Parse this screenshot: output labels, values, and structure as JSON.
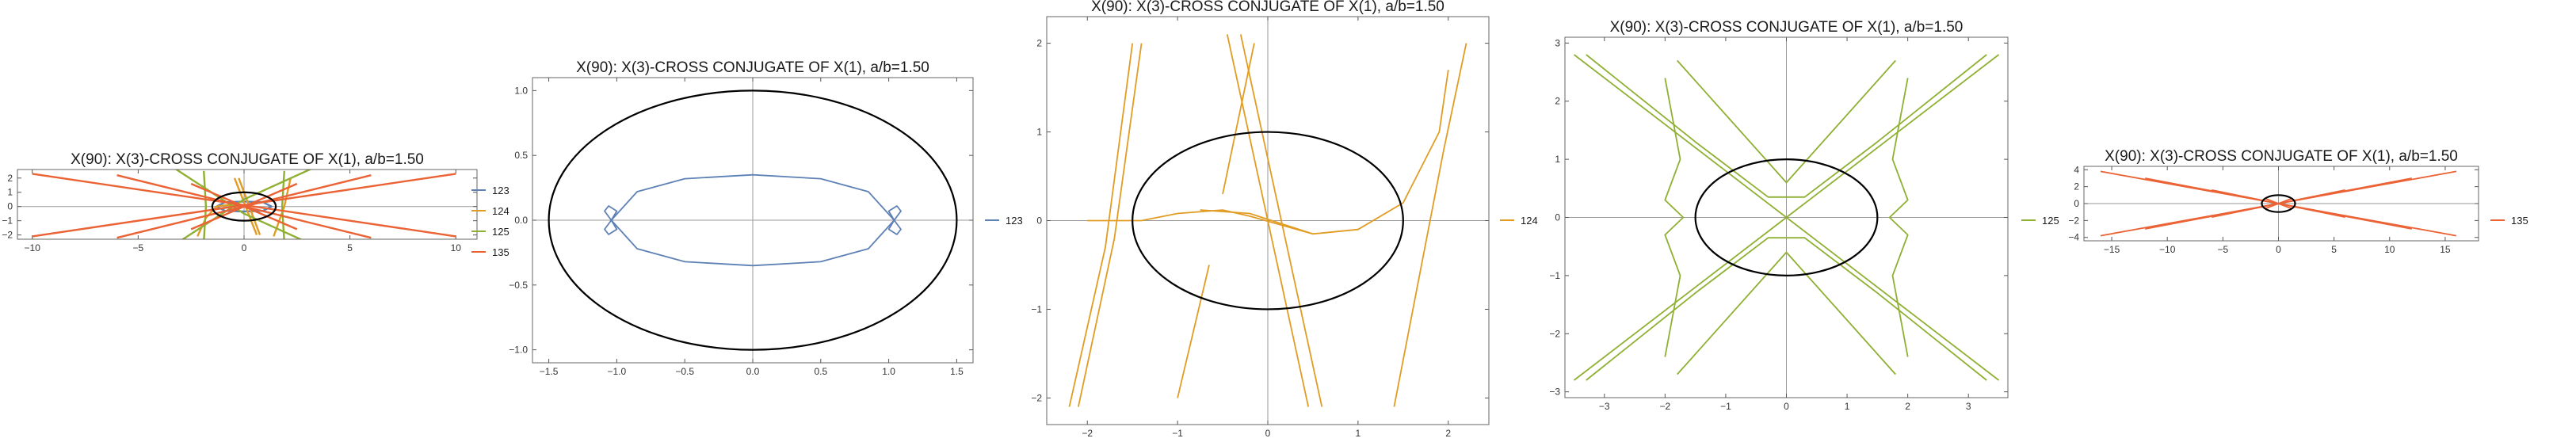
{
  "chart_data": [
    {
      "type": "line",
      "title": "X(90): X(3)-CROSS CONJUGATE OF X(1), a/b=1.50",
      "xlim": [
        -10.7,
        11
      ],
      "ylim": [
        -2.3,
        2.6
      ],
      "xticks": [
        -10,
        -5,
        0,
        5,
        10
      ],
      "yticks": [
        -2,
        -1,
        0,
        1,
        2
      ],
      "grid": false,
      "legend_position": "right",
      "legend": [
        {
          "label": "123",
          "color": "#5e81b5"
        },
        {
          "label": "124",
          "color": "#e19c24"
        },
        {
          "label": "125",
          "color": "#8fb032"
        },
        {
          "label": "135",
          "color": "#eb6235"
        }
      ],
      "ellipse": {
        "a": 1.5,
        "b": 1,
        "color": "#000000"
      },
      "series": [
        {
          "name": "123",
          "color": "#5e81b5",
          "curves": [
            [
              [
                -1.3,
                0
              ],
              [
                -0.9,
                0.3
              ],
              [
                0,
                0.35
              ],
              [
                0.9,
                0.3
              ],
              [
                1.3,
                0
              ],
              [
                0.9,
                -0.3
              ],
              [
                0,
                -0.35
              ],
              [
                -0.9,
                -0.3
              ],
              [
                -1.3,
                0
              ]
            ]
          ]
        },
        {
          "name": "124",
          "color": "#e19c24",
          "curves": [
            [
              [
                -2.2,
                -2.1
              ],
              [
                -1.8,
                -0.8
              ],
              [
                -1.3,
                0
              ],
              [
                -0.8,
                0.1
              ],
              [
                -0.5,
                0.05
              ]
            ],
            [
              [
                -0.45,
                2.0
              ],
              [
                0.6,
                -2.0
              ]
            ],
            [
              [
                -0.25,
                2.0
              ],
              [
                0.75,
                -2.0
              ]
            ],
            [
              [
                1.4,
                -2.1
              ],
              [
                1.9,
                0
              ],
              [
                2.2,
                2.0
              ]
            ]
          ]
        },
        {
          "name": "125",
          "color": "#8fb032",
          "curves": [
            [
              [
                -3.4,
                2.8
              ],
              [
                0,
                -0.5
              ],
              [
                3.4,
                -2.8
              ]
            ],
            [
              [
                -3.4,
                -2.8
              ],
              [
                0,
                0.5
              ],
              [
                3.4,
                2.8
              ]
            ],
            [
              [
                -1.9,
                2.5
              ],
              [
                -1.8,
                0
              ],
              [
                -1.9,
                -2.5
              ]
            ],
            [
              [
                1.9,
                2.5
              ],
              [
                1.8,
                0
              ],
              [
                1.9,
                -2.5
              ]
            ]
          ]
        },
        {
          "name": "135",
          "color": "#eb6235",
          "curves": [
            [
              [
                -10,
                2.3
              ],
              [
                10,
                -2.1
              ]
            ],
            [
              [
                -10,
                -2.1
              ],
              [
                10,
                2.3
              ]
            ],
            [
              [
                -6,
                2.2
              ],
              [
                6,
                -2.2
              ]
            ],
            [
              [
                -6,
                -2.2
              ],
              [
                6,
                2.2
              ]
            ],
            [
              [
                -2.5,
                1.6
              ],
              [
                2.5,
                -1.6
              ]
            ],
            [
              [
                -2.5,
                -1.6
              ],
              [
                2.5,
                1.6
              ]
            ]
          ]
        }
      ]
    },
    {
      "type": "line",
      "title": "X(90): X(3)-CROSS CONJUGATE OF X(1), a/b=1.50",
      "xlim": [
        -1.62,
        1.62
      ],
      "ylim": [
        -1.1,
        1.1
      ],
      "xticks": [
        -1.5,
        -1.0,
        -0.5,
        0.0,
        0.5,
        1.0,
        1.5
      ],
      "xtick_labels": [
        "-1.5",
        "-1.0",
        "-0.5",
        "0.0",
        "0.5",
        "1.0",
        "1.5"
      ],
      "yticks": [
        -1.0,
        -0.5,
        0.0,
        0.5,
        1.0
      ],
      "ytick_labels": [
        "-1.0",
        "-0.5",
        "0.0",
        "0.5",
        "1.0"
      ],
      "grid": false,
      "legend_position": "right",
      "legend": [
        {
          "label": "123",
          "color": "#5e81b5"
        }
      ],
      "ellipse": {
        "a": 1.5,
        "b": 1,
        "color": "#000000"
      },
      "series": [
        {
          "name": "123",
          "color": "#5e81b5",
          "curves": [
            [
              [
                -1.04,
                0
              ],
              [
                -0.85,
                0.22
              ],
              [
                -0.5,
                0.32
              ],
              [
                0,
                0.35
              ],
              [
                0.5,
                0.32
              ],
              [
                0.85,
                0.22
              ],
              [
                1.04,
                0
              ],
              [
                0.85,
                -0.22
              ],
              [
                0.5,
                -0.32
              ],
              [
                0,
                -0.35
              ],
              [
                -0.5,
                -0.32
              ],
              [
                -0.85,
                -0.22
              ],
              [
                -1.04,
                0
              ]
            ],
            [
              [
                -1.04,
                0
              ],
              [
                -1.09,
                0.07
              ],
              [
                -1.06,
                0.11
              ],
              [
                -1.0,
                0.07
              ],
              [
                -1.04,
                0
              ],
              [
                -1.09,
                -0.07
              ],
              [
                -1.06,
                -0.11
              ],
              [
                -1.0,
                -0.07
              ],
              [
                -1.04,
                0
              ]
            ],
            [
              [
                1.04,
                0
              ],
              [
                1.09,
                0.07
              ],
              [
                1.06,
                0.11
              ],
              [
                1.0,
                0.07
              ],
              [
                1.04,
                0
              ],
              [
                1.09,
                -0.07
              ],
              [
                1.06,
                -0.11
              ],
              [
                1.0,
                -0.07
              ],
              [
                1.04,
                0
              ]
            ]
          ]
        }
      ]
    },
    {
      "type": "line",
      "title": "X(90): X(3)-CROSS CONJUGATE OF X(1), a/b=1.50",
      "xlim": [
        -2.45,
        2.45
      ],
      "ylim": [
        -2.3,
        2.3
      ],
      "xticks": [
        -2,
        -1,
        0,
        1,
        2
      ],
      "yticks": [
        -2,
        -1,
        0,
        1,
        2
      ],
      "grid": false,
      "legend_position": "right",
      "legend": [
        {
          "label": "124",
          "color": "#e19c24"
        }
      ],
      "ellipse": {
        "a": 1.5,
        "b": 1,
        "color": "#000000"
      },
      "series": [
        {
          "name": "124",
          "color": "#e19c24",
          "curves": [
            [
              [
                -1.5,
                2.0
              ],
              [
                -1.8,
                -0.3
              ],
              [
                -2.2,
                -2.1
              ]
            ],
            [
              [
                -1.4,
                2.0
              ],
              [
                -1.7,
                -0.2
              ],
              [
                -2.1,
                -2.1
              ]
            ],
            [
              [
                -2.0,
                0.0
              ],
              [
                -1.4,
                0.0
              ],
              [
                -1.0,
                0.08
              ],
              [
                -0.5,
                0.12
              ],
              [
                -0.2,
                0.05
              ],
              [
                0.5,
                -0.15
              ]
            ],
            [
              [
                -0.75,
                0.12
              ],
              [
                -0.2,
                0.08
              ],
              [
                0.5,
                -0.15
              ],
              [
                1.0,
                -0.1
              ],
              [
                1.5,
                0.2
              ],
              [
                1.9,
                1.0
              ]
            ],
            [
              [
                -0.45,
                2.1
              ],
              [
                0.45,
                -2.1
              ]
            ],
            [
              [
                -0.3,
                2.1
              ],
              [
                0.6,
                -2.1
              ]
            ],
            [
              [
                -0.15,
                2.0
              ],
              [
                -0.5,
                0.3
              ]
            ],
            [
              [
                -0.65,
                -0.5
              ],
              [
                -1.0,
                -2.0
              ]
            ],
            [
              [
                1.4,
                -2.1
              ],
              [
                1.95,
                0.8
              ],
              [
                2.2,
                2.0
              ]
            ],
            [
              [
                1.9,
                1.0
              ],
              [
                2.0,
                1.7
              ]
            ]
          ]
        }
      ]
    },
    {
      "type": "line",
      "title": "X(90): X(3)-CROSS CONJUGATE OF X(1), a/b=1.50",
      "xlim": [
        -3.65,
        3.65
      ],
      "ylim": [
        -3.1,
        3.1
      ],
      "xticks": [
        -3,
        -2,
        -1,
        0,
        1,
        2,
        3
      ],
      "yticks": [
        -3,
        -2,
        -1,
        0,
        1,
        2,
        3
      ],
      "grid": false,
      "legend_position": "right",
      "legend": [
        {
          "label": "125",
          "color": "#8fb032"
        }
      ],
      "ellipse": {
        "a": 1.5,
        "b": 1,
        "color": "#000000"
      },
      "series": [
        {
          "name": "125",
          "color": "#8fb032",
          "curves": [
            [
              [
                -3.3,
                2.8
              ],
              [
                -1.5,
                1.3
              ],
              [
                -0.3,
                0.35
              ],
              [
                0,
                0.35
              ],
              [
                0.3,
                0.35
              ],
              [
                1.5,
                1.3
              ],
              [
                3.3,
                2.8
              ]
            ],
            [
              [
                -3.3,
                -2.8
              ],
              [
                -1.5,
                -1.3
              ],
              [
                -0.3,
                -0.35
              ],
              [
                0,
                -0.35
              ],
              [
                0.3,
                -0.35
              ],
              [
                1.5,
                -1.3
              ],
              [
                3.3,
                -2.8
              ]
            ],
            [
              [
                -3.5,
                2.8
              ],
              [
                0,
                0
              ],
              [
                3.5,
                -2.8
              ]
            ],
            [
              [
                -3.5,
                -2.8
              ],
              [
                0,
                0
              ],
              [
                3.5,
                2.8
              ]
            ],
            [
              [
                -1.8,
                2.7
              ],
              [
                0,
                0.6
              ],
              [
                1.8,
                2.7
              ]
            ],
            [
              [
                -1.8,
                -2.7
              ],
              [
                0,
                -0.6
              ],
              [
                1.8,
                -2.7
              ]
            ],
            [
              [
                -2.0,
                2.4
              ],
              [
                -1.75,
                1.0
              ],
              [
                -2.0,
                0.3
              ],
              [
                -1.7,
                0
              ],
              [
                -2.0,
                -0.3
              ],
              [
                -1.75,
                -1.0
              ],
              [
                -2.0,
                -2.4
              ]
            ],
            [
              [
                2.0,
                2.4
              ],
              [
                1.75,
                1.0
              ],
              [
                2.0,
                0.3
              ],
              [
                1.7,
                0
              ],
              [
                2.0,
                -0.3
              ],
              [
                1.75,
                -1.0
              ],
              [
                2.0,
                -2.4
              ]
            ]
          ]
        }
      ]
    },
    {
      "type": "line",
      "title": "X(90): X(3)-CROSS CONJUGATE OF X(1), a/b=1.50",
      "xlim": [
        -17.5,
        18
      ],
      "ylim": [
        -4.4,
        4.4
      ],
      "xticks": [
        -15,
        -10,
        -5,
        0,
        5,
        10,
        15
      ],
      "yticks": [
        -4,
        -2,
        0,
        2,
        4
      ],
      "grid": false,
      "legend_position": "right",
      "legend": [
        {
          "label": "135",
          "color": "#eb6235"
        }
      ],
      "ellipse": {
        "a": 1.5,
        "b": 1,
        "color": "#000000"
      },
      "series": [
        {
          "name": "135",
          "color": "#eb6235",
          "curves": [
            [
              [
                -16,
                3.8
              ],
              [
                16,
                -3.8
              ]
            ],
            [
              [
                -16,
                -3.8
              ],
              [
                16,
                3.8
              ]
            ],
            [
              [
                -12,
                3.0
              ],
              [
                12,
                -3.0
              ]
            ],
            [
              [
                -12,
                -3.0
              ],
              [
                12,
                3.0
              ]
            ],
            [
              [
                -6,
                1.6
              ],
              [
                6,
                -1.6
              ]
            ],
            [
              [
                -6,
                -1.6
              ],
              [
                6,
                1.6
              ]
            ],
            [
              [
                -1.2,
                0.6
              ],
              [
                1.2,
                -0.6
              ]
            ],
            [
              [
                -1.2,
                -0.6
              ],
              [
                1.2,
                0.6
              ]
            ]
          ]
        }
      ]
    }
  ]
}
